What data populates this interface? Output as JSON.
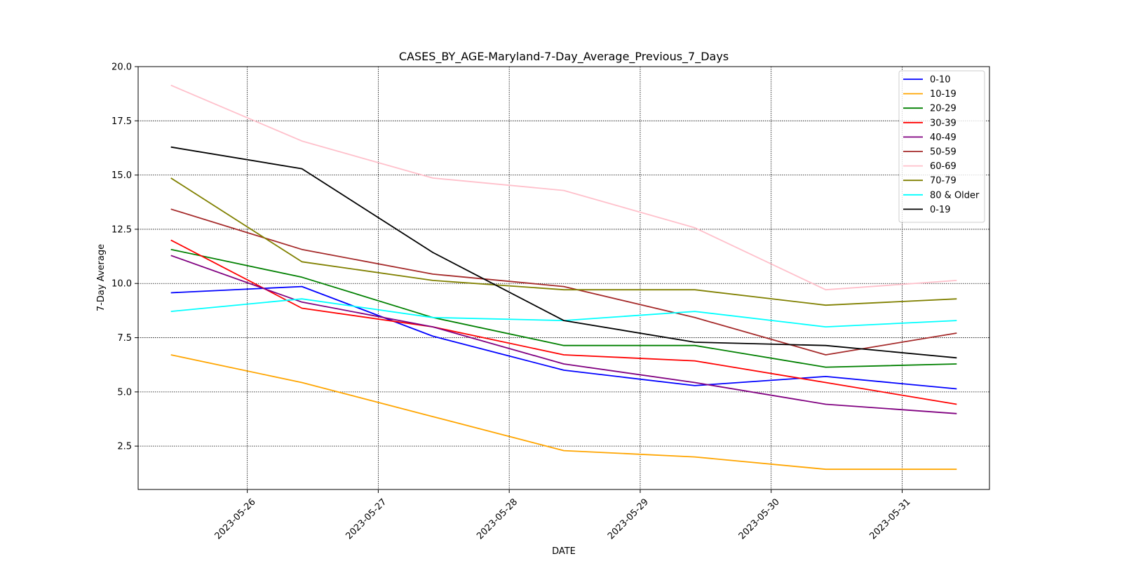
{
  "chart_data": {
    "type": "line",
    "title": "CASES_BY_AGE-Maryland-7-Day_Average_Previous_7_Days",
    "xlabel": "DATE",
    "ylabel": "7-Day Average",
    "x": [
      "2023-05-25 10:00",
      "2023-05-26 10:00",
      "2023-05-27 10:00",
      "2023-05-28 10:00",
      "2023-05-29 10:00",
      "2023-05-30 10:00",
      "2023-05-31 10:00"
    ],
    "xlim": [
      "2023-05-25 04:00",
      "2023-05-31 16:00"
    ],
    "x_ticks": [
      "2023-05-26",
      "2023-05-27",
      "2023-05-28",
      "2023-05-29",
      "2023-05-30",
      "2023-05-31"
    ],
    "ylim": [
      0.5,
      20.0
    ],
    "y_ticks": [
      "2.5",
      "5.0",
      "7.5",
      "10.0",
      "12.5",
      "15.0",
      "17.5",
      "20.0"
    ],
    "grid": true,
    "legend_position": "top-right",
    "series": [
      {
        "name": "0-10",
        "color": "#0000ff",
        "values": [
          9.57,
          9.86,
          7.57,
          6.0,
          5.29,
          5.71,
          5.14
        ]
      },
      {
        "name": "10-19",
        "color": "#ffa500",
        "values": [
          6.71,
          5.43,
          3.86,
          2.29,
          2.0,
          1.43,
          1.43
        ]
      },
      {
        "name": "20-29",
        "color": "#008000",
        "values": [
          11.57,
          10.29,
          8.43,
          7.14,
          7.14,
          6.14,
          6.29
        ]
      },
      {
        "name": "30-39",
        "color": "#ff0000",
        "values": [
          12.0,
          8.86,
          8.0,
          6.71,
          6.43,
          5.43,
          4.43
        ]
      },
      {
        "name": "40-49",
        "color": "#800080",
        "values": [
          11.29,
          9.14,
          8.0,
          6.29,
          5.43,
          4.43,
          4.0
        ]
      },
      {
        "name": "50-59",
        "color": "#a52a2a",
        "values": [
          13.43,
          11.57,
          10.43,
          9.86,
          8.43,
          6.71,
          7.71
        ]
      },
      {
        "name": "60-69",
        "color": "#ffc0cb",
        "values": [
          19.14,
          16.57,
          14.86,
          14.29,
          12.57,
          9.71,
          10.14
        ]
      },
      {
        "name": "70-79",
        "color": "#808000",
        "values": [
          14.86,
          11.0,
          10.14,
          9.71,
          9.71,
          9.0,
          9.29
        ]
      },
      {
        "name": "80 & Older",
        "color": "#00ffff",
        "values": [
          8.71,
          9.29,
          8.43,
          8.29,
          8.71,
          8.0,
          8.29
        ]
      },
      {
        "name": "0-19",
        "color": "#000000",
        "values": [
          16.29,
          15.29,
          11.43,
          8.29,
          7.29,
          7.14,
          6.57
        ]
      }
    ]
  }
}
